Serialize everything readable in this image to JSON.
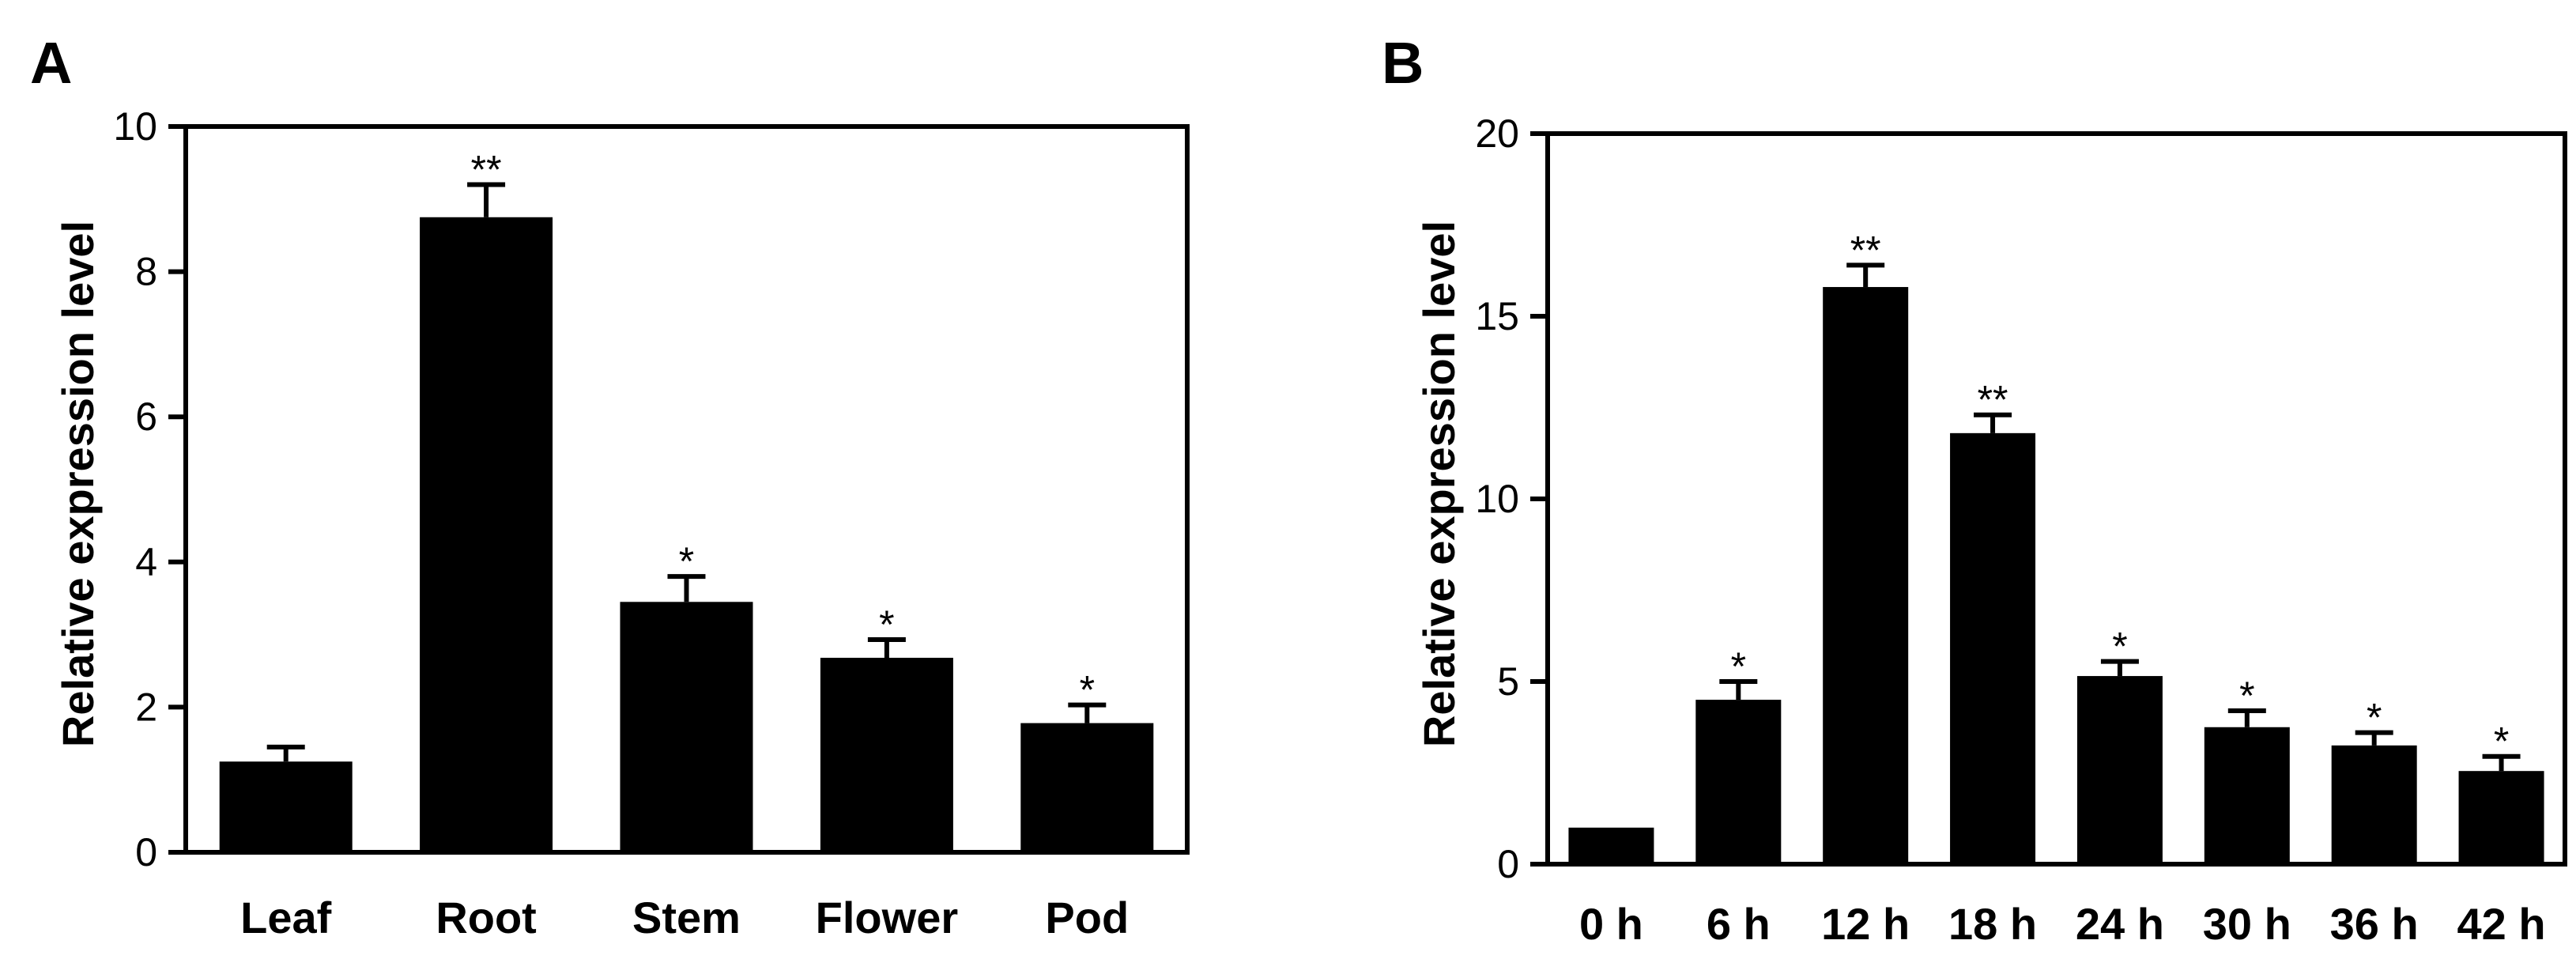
{
  "chart_data": [
    {
      "type": "bar",
      "panel": "A",
      "title": "",
      "xlabel": "",
      "ylabel": "Relative expression level",
      "ylim": [
        0,
        10
      ],
      "yticks": [
        "0",
        "2",
        "4",
        "6",
        "8",
        "10"
      ],
      "categories": [
        "Leaf",
        "Root",
        "Stem",
        "Flower",
        "Pod"
      ],
      "values": [
        1.25,
        8.75,
        3.45,
        2.68,
        1.78
      ],
      "errors": [
        0.2,
        0.45,
        0.35,
        0.25,
        0.25
      ],
      "significance": [
        "",
        "**",
        "*",
        "*",
        "*"
      ],
      "bar_color": "#000000"
    },
    {
      "type": "bar",
      "panel": "B",
      "title": "",
      "xlabel": "",
      "ylabel": "Relative expression level",
      "ylim": [
        0,
        20
      ],
      "yticks": [
        "0",
        "5",
        "10",
        "15",
        "20"
      ],
      "categories": [
        "0 h",
        "6 h",
        "12 h",
        "18 h",
        "24 h",
        "30 h",
        "36 h",
        "42 h"
      ],
      "values": [
        1.0,
        4.5,
        15.8,
        11.8,
        5.15,
        3.75,
        3.25,
        2.55
      ],
      "errors": [
        0.0,
        0.5,
        0.6,
        0.5,
        0.4,
        0.45,
        0.35,
        0.4
      ],
      "significance": [
        "",
        "*",
        "**",
        "**",
        "*",
        "*",
        "*",
        "*"
      ],
      "bar_color": "#000000"
    }
  ]
}
